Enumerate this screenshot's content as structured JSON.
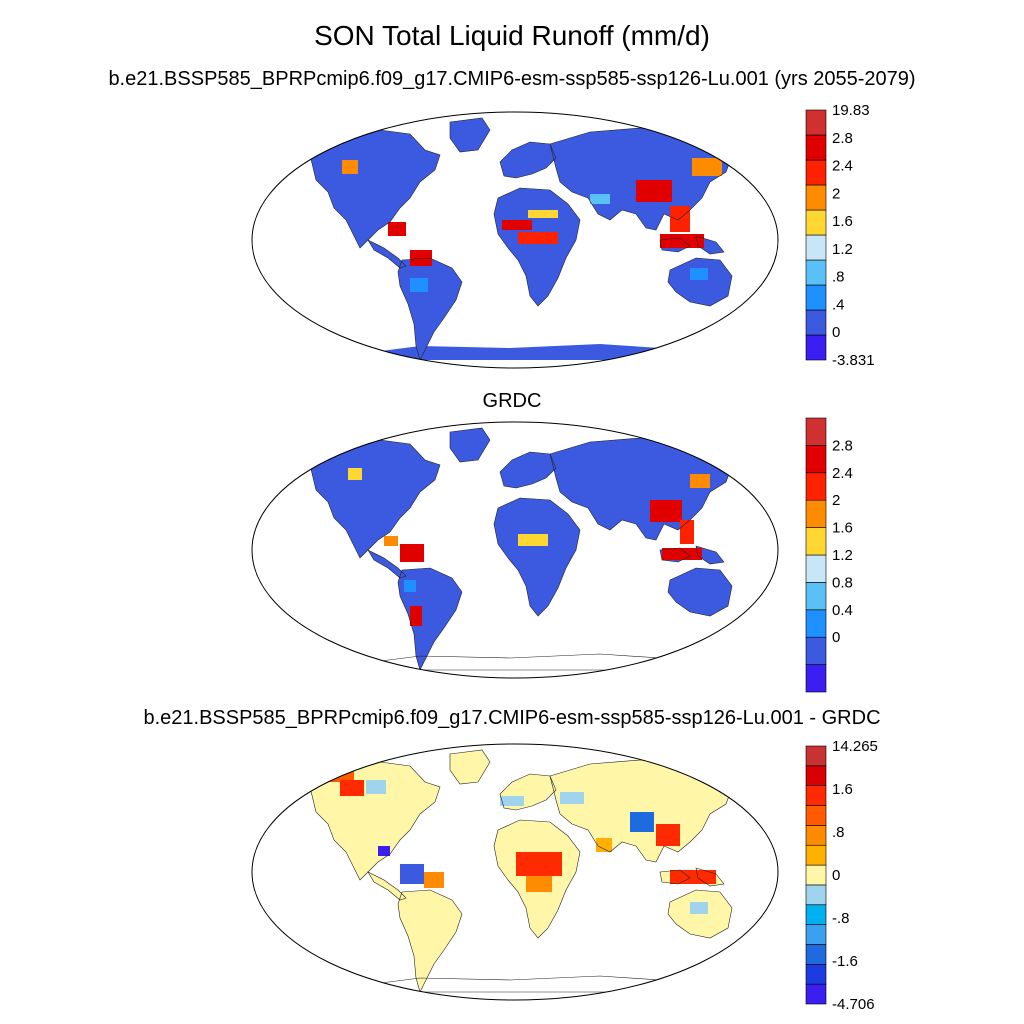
{
  "title": "SON Total Liquid Runoff (mm/d)",
  "panels": [
    {
      "id": "model",
      "subtitle": "b.e21.BSSP585_BPRPcmip6.f09_g17.CMIP6-esm-ssp585-ssp126-Lu.001 (yrs 2055-2079)",
      "colorbar": {
        "colors": [
          "#3b1ef2",
          "#3c5ae0",
          "#1e90ff",
          "#5ac0f5",
          "#c8e6f8",
          "#ffd733",
          "#ff8c00",
          "#ff2200",
          "#e00000",
          "#d03030"
        ],
        "labels": [
          "19.83",
          "2.8",
          "2.4",
          "2",
          "1.6",
          "1.2",
          ".8",
          ".4",
          "0",
          "-3.831"
        ]
      }
    },
    {
      "id": "obs",
      "subtitle": "GRDC",
      "colorbar": {
        "colors": [
          "#3b1ef2",
          "#3c5ae0",
          "#1e90ff",
          "#5ac0f5",
          "#c8e6f8",
          "#ffd733",
          "#ff8c00",
          "#ff2200",
          "#e00000",
          "#d03030"
        ],
        "labels": [
          "2.8",
          "2.4",
          "2",
          "1.6",
          "1.2",
          "0.8",
          "0.4",
          "0"
        ]
      }
    },
    {
      "id": "diff",
      "subtitle": "b.e21.BSSP585_BPRPcmip6.f09_g17.CMIP6-esm-ssp585-ssp126-Lu.001 - GRDC",
      "colorbar": {
        "colors": [
          "#3b1ef2",
          "#1a3ce0",
          "#1e6be0",
          "#3ca0f0",
          "#00b0f0",
          "#9fd4ec",
          "#fff6a8",
          "#ffb000",
          "#ff8c00",
          "#ff5a00",
          "#ff2a00",
          "#d80000",
          "#c83232"
        ],
        "labels": [
          "14.265",
          "1.6",
          ".8",
          "0",
          "-.8",
          "-1.6",
          "-4.706"
        ]
      }
    }
  ]
}
